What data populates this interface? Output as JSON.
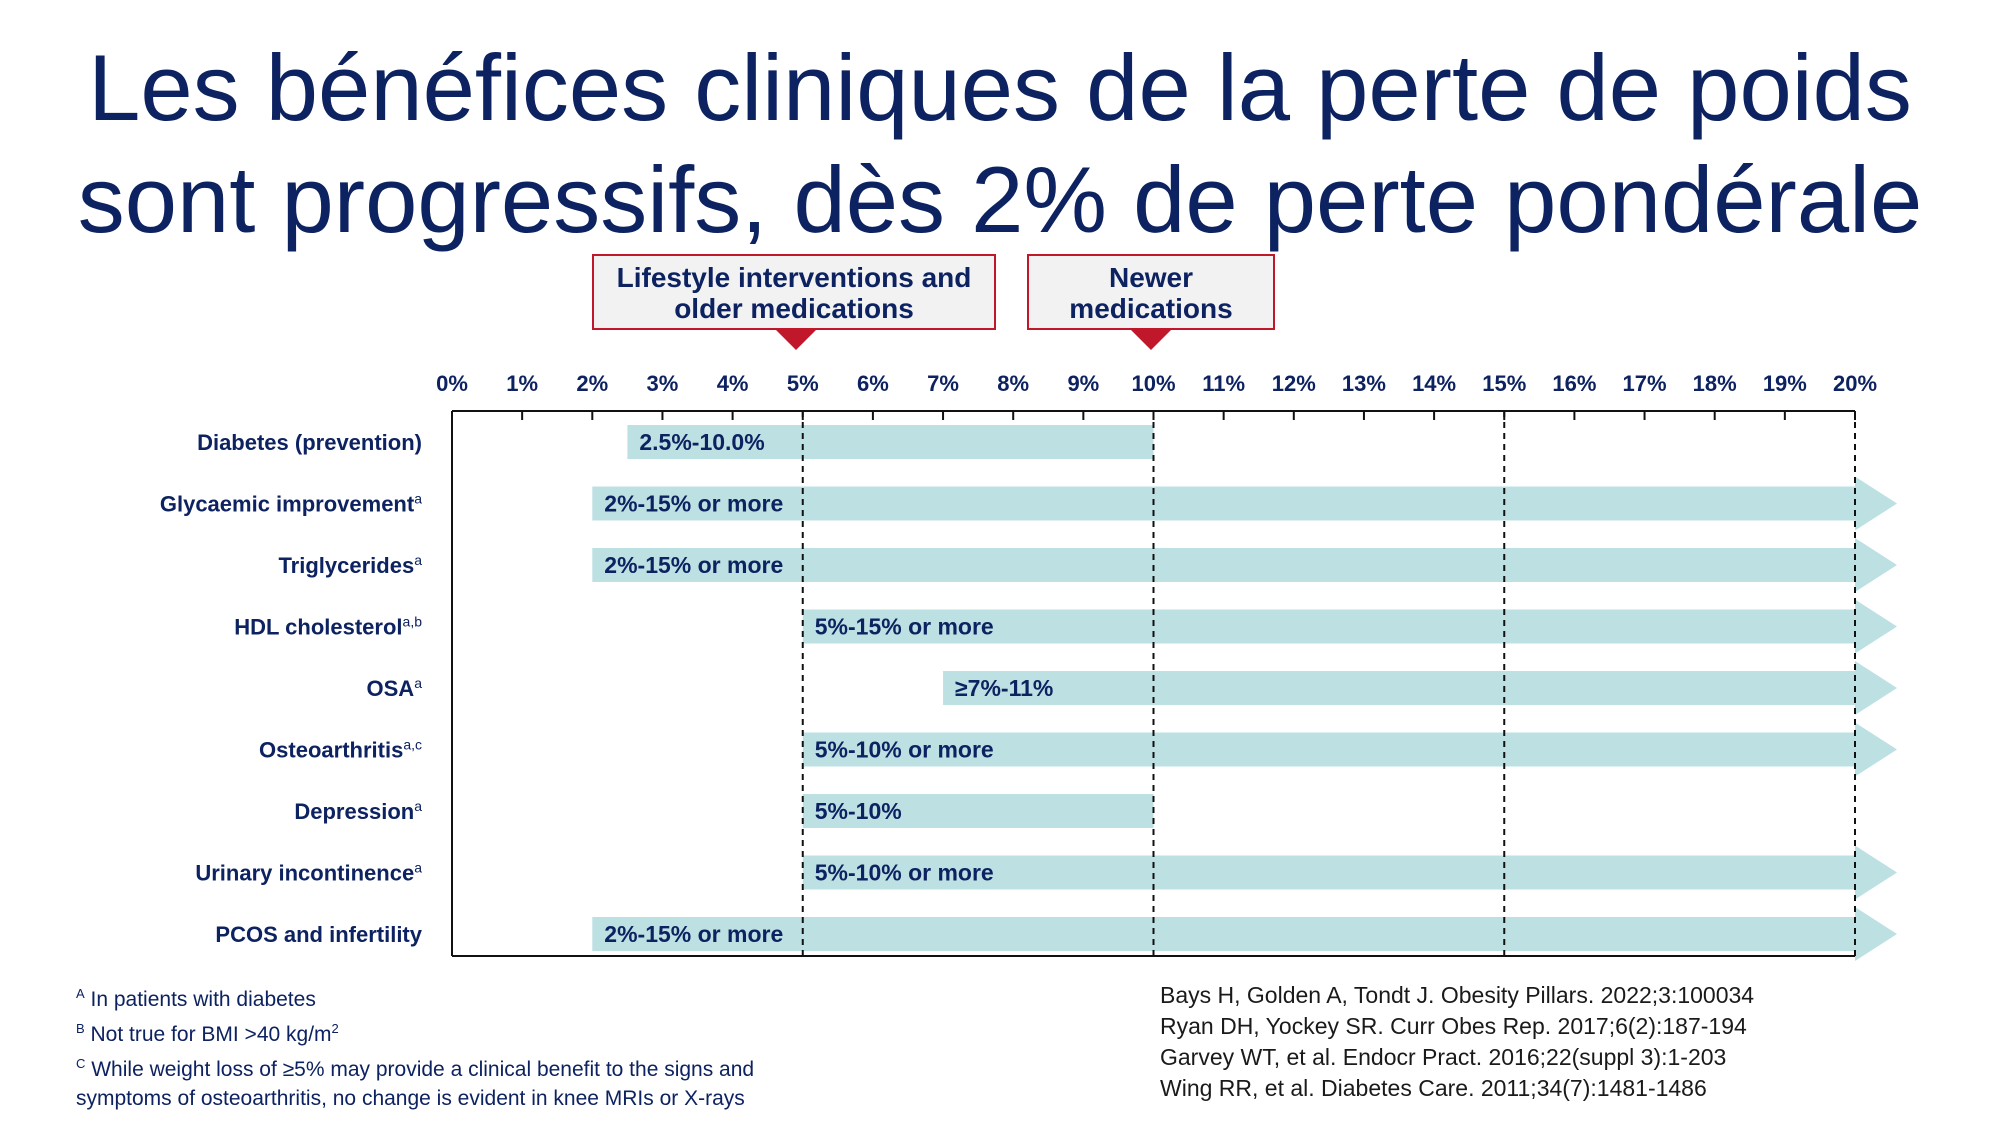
{
  "slide": {
    "title_line1": "Les bénéfices cliniques de la perte de poids",
    "title_line2": "sont progressifs, dès 2% de perte pondérale"
  },
  "callouts": [
    {
      "line1": "Lifestyle interventions and",
      "line2": "older medications",
      "points_to": 5
    },
    {
      "line1": "Newer",
      "line2": "medications",
      "points_to": 10
    }
  ],
  "colors": {
    "title": "#0d2260",
    "bar": "#bde0e3",
    "callout_border": "#c0172b",
    "callout_fill": "#f2f2f2"
  },
  "chart_data": {
    "type": "bar",
    "orientation": "horizontal-range",
    "title": "",
    "xlabel": "",
    "ylabel": "",
    "xlim": [
      0,
      20
    ],
    "x_ticks": [
      "0%",
      "1%",
      "2%",
      "3%",
      "4%",
      "5%",
      "6%",
      "7%",
      "8%",
      "9%",
      "10%",
      "11%",
      "12%",
      "13%",
      "14%",
      "15%",
      "16%",
      "17%",
      "18%",
      "19%",
      "20%"
    ],
    "reference_lines": [
      5,
      10,
      15,
      20
    ],
    "categories": [
      {
        "label": "Diabetes (prevention)",
        "sup": "",
        "start": 2.5,
        "end": 10,
        "open_ended": false,
        "bar_label": "2.5%-10.0%"
      },
      {
        "label": "Glycaemic improvement",
        "sup": "a",
        "start": 2,
        "end": 20,
        "open_ended": true,
        "bar_label": "2%-15% or more"
      },
      {
        "label": "Triglycerides",
        "sup": "a",
        "start": 2,
        "end": 20,
        "open_ended": true,
        "bar_label": "2%-15% or more"
      },
      {
        "label": "HDL cholesterol",
        "sup": "a,b",
        "start": 5,
        "end": 20,
        "open_ended": true,
        "bar_label": "5%-15% or more"
      },
      {
        "label": "OSA",
        "sup": "a",
        "start": 7,
        "end": 20,
        "open_ended": true,
        "bar_label": "≥7%-11%"
      },
      {
        "label": "Osteoarthritis",
        "sup": "a,c",
        "start": 5,
        "end": 20,
        "open_ended": true,
        "bar_label": "5%-10% or more"
      },
      {
        "label": "Depression",
        "sup": "a",
        "start": 5,
        "end": 10,
        "open_ended": false,
        "bar_label": "5%-10%"
      },
      {
        "label": "Urinary incontinence",
        "sup": "a",
        "start": 5,
        "end": 20,
        "open_ended": true,
        "bar_label": "5%-10% or more"
      },
      {
        "label": "PCOS and infertility",
        "sup": "",
        "start": 2,
        "end": 20,
        "open_ended": true,
        "bar_label": "2%-15% or more"
      }
    ]
  },
  "footnotes": [
    {
      "sup": "A",
      "text": "In patients with diabetes"
    },
    {
      "sup": "B",
      "text": "Not true for BMI >40 kg/m",
      "trail_sup": "2"
    },
    {
      "sup": "C",
      "text": "While weight loss of ≥5% may provide a clinical benefit to the signs and"
    },
    {
      "sup": "",
      "text": "symptoms of osteoarthritis, no change is evident in knee MRIs or X-rays"
    }
  ],
  "references": [
    "Bays H, Golden A, Tondt J. Obesity Pillars. 2022;3:100034",
    "Ryan DH, Yockey SR. Curr Obes Rep. 2017;6(2):187-194",
    "Garvey WT, et al. Endocr Pract. 2016;22(suppl 3):1-203",
    "Wing RR, et al. Diabetes Care. 2011;34(7):1481-1486"
  ]
}
